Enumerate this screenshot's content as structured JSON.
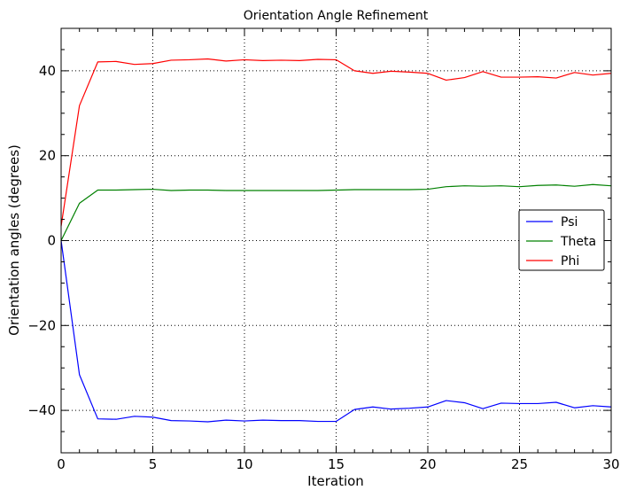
{
  "chart_data": {
    "type": "line",
    "title": "Orientation Angle Refinement",
    "xlabel": "Iteration",
    "ylabel": "Orientation angles (degrees)",
    "xlim": [
      0,
      30
    ],
    "ylim": [
      -50,
      50
    ],
    "xticks": [
      0,
      5,
      10,
      15,
      20,
      25,
      30
    ],
    "yticks": [
      -40,
      -20,
      0,
      20,
      40
    ],
    "xtick_labels": [
      "0",
      "5",
      "10",
      "15",
      "20",
      "25",
      "30"
    ],
    "ytick_labels": [
      "−40",
      "−20",
      "0",
      "20",
      "40"
    ],
    "grid": true,
    "legend_position": "center-right",
    "x": [
      0,
      1,
      2,
      3,
      4,
      5,
      6,
      7,
      8,
      9,
      10,
      11,
      12,
      13,
      14,
      15,
      16,
      17,
      18,
      19,
      20,
      21,
      22,
      23,
      24,
      25,
      26,
      27,
      28,
      29,
      30
    ],
    "series": [
      {
        "name": "Psi",
        "color": "#0000ff",
        "values": [
          0,
          -31.6,
          -42.0,
          -42.1,
          -41.4,
          -41.6,
          -42.4,
          -42.5,
          -42.7,
          -42.3,
          -42.5,
          -42.3,
          -42.4,
          -42.4,
          -42.6,
          -42.6,
          -39.8,
          -39.2,
          -39.7,
          -39.5,
          -39.2,
          -37.7,
          -38.2,
          -39.6,
          -38.3,
          -38.4,
          -38.4,
          -38.1,
          -39.4,
          -38.9,
          -39.2
        ]
      },
      {
        "name": "Theta",
        "color": "#008000",
        "values": [
          0,
          8.8,
          11.9,
          11.9,
          12.0,
          12.1,
          11.8,
          11.9,
          11.9,
          11.8,
          11.8,
          11.8,
          11.8,
          11.8,
          11.8,
          11.9,
          12.0,
          12.0,
          12.0,
          12.0,
          12.1,
          12.7,
          12.9,
          12.8,
          12.9,
          12.7,
          13.0,
          13.1,
          12.8,
          13.2,
          12.9
        ]
      },
      {
        "name": "Phi",
        "color": "#ff0000",
        "values": [
          3.4,
          31.8,
          42.1,
          42.2,
          41.5,
          41.7,
          42.5,
          42.6,
          42.8,
          42.3,
          42.6,
          42.4,
          42.5,
          42.4,
          42.7,
          42.6,
          40.0,
          39.4,
          39.9,
          39.7,
          39.4,
          37.8,
          38.4,
          39.8,
          38.5,
          38.5,
          38.6,
          38.3,
          39.6,
          39.0,
          39.4
        ]
      }
    ]
  }
}
